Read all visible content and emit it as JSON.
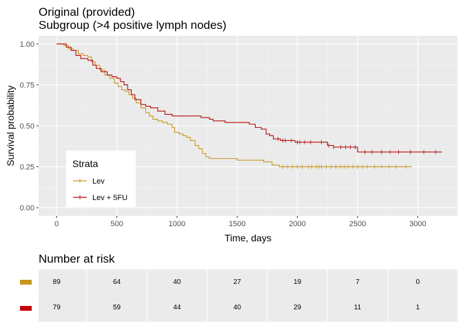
{
  "chart_data": [
    {
      "type": "line",
      "subtype": "kaplan-meier step",
      "title_line1": "Original (provided)",
      "title_line2": "Subgroup (>4 positive lymph nodes)",
      "xlabel": "Time, days",
      "ylabel": "Survival probability",
      "xlim": [
        -150,
        3330
      ],
      "ylim": [
        -0.05,
        1.05
      ],
      "x_ticks": [
        "0",
        "500",
        "1000",
        "1500",
        "2000",
        "2500",
        "3000"
      ],
      "y_ticks": [
        "0.00",
        "0.25",
        "0.50",
        "0.75",
        "1.00"
      ],
      "grid": true,
      "legend": {
        "title": "Strata",
        "placement": "bottom-left inside",
        "entries": [
          "Lev",
          "Lev + 5FU"
        ]
      },
      "series": [
        {
          "name": "Lev",
          "color": "#c8961e",
          "points": [
            [
              0,
              1.0
            ],
            [
              60,
              0.99
            ],
            [
              100,
              0.97
            ],
            [
              140,
              0.96
            ],
            [
              180,
              0.94
            ],
            [
              220,
              0.93
            ],
            [
              260,
              0.92
            ],
            [
              290,
              0.89
            ],
            [
              320,
              0.87
            ],
            [
              360,
              0.84
            ],
            [
              400,
              0.81
            ],
            [
              440,
              0.79
            ],
            [
              480,
              0.76
            ],
            [
              510,
              0.74
            ],
            [
              540,
              0.72
            ],
            [
              570,
              0.71
            ],
            [
              600,
              0.69
            ],
            [
              630,
              0.67
            ],
            [
              660,
              0.64
            ],
            [
              700,
              0.61
            ],
            [
              740,
              0.58
            ],
            [
              770,
              0.56
            ],
            [
              800,
              0.54
            ],
            [
              840,
              0.53
            ],
            [
              880,
              0.52
            ],
            [
              920,
              0.51
            ],
            [
              960,
              0.49
            ],
            [
              980,
              0.46
            ],
            [
              1020,
              0.45
            ],
            [
              1050,
              0.44
            ],
            [
              1080,
              0.43
            ],
            [
              1110,
              0.41
            ],
            [
              1150,
              0.38
            ],
            [
              1180,
              0.36
            ],
            [
              1210,
              0.33
            ],
            [
              1240,
              0.31
            ],
            [
              1270,
              0.3
            ],
            [
              1500,
              0.29
            ],
            [
              1720,
              0.28
            ],
            [
              1790,
              0.26
            ],
            [
              1850,
              0.25
            ],
            [
              2950,
              0.25
            ]
          ],
          "censor_marks": [
            1880,
            1920,
            1960,
            2000,
            2040,
            2090,
            2120,
            2160,
            2180,
            2200,
            2240,
            2280,
            2320,
            2360,
            2390,
            2420,
            2460,
            2500,
            2540,
            2580,
            2640,
            2700,
            2760,
            2820,
            2900
          ]
        },
        {
          "name": "Lev + 5FU",
          "color": "#b40a0a",
          "points": [
            [
              0,
              1.0
            ],
            [
              80,
              0.98
            ],
            [
              120,
              0.96
            ],
            [
              160,
              0.93
            ],
            [
              200,
              0.91
            ],
            [
              260,
              0.9
            ],
            [
              300,
              0.87
            ],
            [
              330,
              0.85
            ],
            [
              370,
              0.83
            ],
            [
              420,
              0.81
            ],
            [
              460,
              0.8
            ],
            [
              500,
              0.79
            ],
            [
              530,
              0.77
            ],
            [
              560,
              0.75
            ],
            [
              590,
              0.72
            ],
            [
              620,
              0.69
            ],
            [
              650,
              0.66
            ],
            [
              700,
              0.63
            ],
            [
              740,
              0.62
            ],
            [
              780,
              0.61
            ],
            [
              840,
              0.59
            ],
            [
              900,
              0.57
            ],
            [
              960,
              0.56
            ],
            [
              1200,
              0.55
            ],
            [
              1270,
              0.54
            ],
            [
              1300,
              0.53
            ],
            [
              1400,
              0.52
            ],
            [
              1600,
              0.51
            ],
            [
              1650,
              0.49
            ],
            [
              1700,
              0.48
            ],
            [
              1740,
              0.45
            ],
            [
              1770,
              0.44
            ],
            [
              1800,
              0.42
            ],
            [
              1860,
              0.41
            ],
            [
              1980,
              0.4
            ],
            [
              2250,
              0.38
            ],
            [
              2300,
              0.37
            ],
            [
              2450,
              0.37
            ],
            [
              2500,
              0.34
            ],
            [
              3200,
              0.34
            ]
          ],
          "censor_marks": [
            1840,
            1880,
            1900,
            1950,
            2000,
            2020,
            2060,
            2110,
            2200,
            2260,
            2300,
            2360,
            2400,
            2440,
            2480,
            2560,
            2620,
            2700,
            2770,
            2840,
            2940,
            3050,
            3150
          ]
        }
      ]
    },
    {
      "type": "table",
      "title": "Number at risk",
      "x_values": [
        0,
        500,
        1000,
        1500,
        2000,
        2500,
        3000
      ],
      "rows": [
        {
          "color": "#c8961e",
          "values": [
            "89",
            "64",
            "40",
            "27",
            "19",
            "7",
            "0"
          ]
        },
        {
          "color": "#c8000a",
          "values": [
            "79",
            "59",
            "44",
            "40",
            "29",
            "11",
            "1"
          ]
        }
      ]
    }
  ]
}
